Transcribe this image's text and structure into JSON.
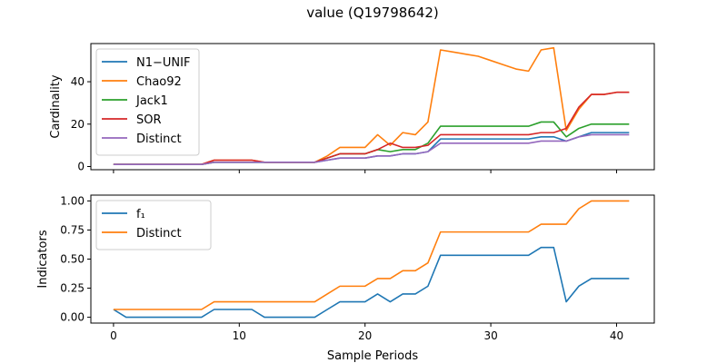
{
  "chart_data": {
    "title": "value (Q19798642)",
    "xlabel": "Sample Periods",
    "x": [
      0,
      1,
      2,
      3,
      4,
      5,
      6,
      7,
      8,
      9,
      10,
      11,
      12,
      13,
      14,
      15,
      16,
      17,
      18,
      19,
      20,
      21,
      22,
      23,
      24,
      25,
      26,
      27,
      28,
      29,
      30,
      31,
      32,
      33,
      34,
      35,
      36,
      37,
      38,
      39,
      40,
      41
    ],
    "x_ticks": [
      0,
      10,
      20,
      30,
      40
    ],
    "xlim": [
      -1.8,
      43
    ],
    "colors": {
      "blue": "#1f77b4",
      "orange": "#ff7f0e",
      "green": "#2ca02c",
      "red": "#d62728",
      "purple": "#9467bd"
    },
    "subplots": [
      {
        "type": "line",
        "ylabel": "Cardinality",
        "ylim": [
          -1.5,
          58
        ],
        "y_ticks": [
          0,
          20,
          40
        ],
        "legend_position": "upper-left",
        "series": [
          {
            "name": "N1−UNIF",
            "color": "#1f77b4",
            "values": [
              1,
              1,
              1,
              1,
              1,
              1,
              1,
              1,
              2,
              2,
              2,
              2,
              2,
              2,
              2,
              2,
              2,
              3,
              4,
              4,
              4,
              5,
              5,
              6,
              6,
              7,
              13,
              13,
              13,
              13,
              13,
              13,
              13,
              13,
              14,
              14,
              12,
              14,
              16,
              16,
              16,
              16
            ]
          },
          {
            "name": "Chao92",
            "color": "#ff7f0e",
            "values": [
              1,
              1,
              1,
              1,
              1,
              1,
              1,
              1,
              3,
              3,
              3,
              3,
              2,
              2,
              2,
              2,
              2,
              5,
              9,
              9,
              9,
              15,
              10,
              16,
              15,
              21,
              55,
              54,
              53,
              52,
              50,
              48,
              46,
              45,
              55,
              56,
              17,
              27,
              34,
              34,
              35,
              35
            ]
          },
          {
            "name": "Jack1",
            "color": "#2ca02c",
            "values": [
              1,
              1,
              1,
              1,
              1,
              1,
              1,
              1,
              2,
              2,
              2,
              2,
              2,
              2,
              2,
              2,
              2,
              4,
              6,
              6,
              6,
              8,
              7,
              8,
              8,
              11,
              19,
              19,
              19,
              19,
              19,
              19,
              19,
              19,
              21,
              21,
              14,
              18,
              20,
              20,
              20,
              20
            ]
          },
          {
            "name": "SOR",
            "color": "#d62728",
            "values": [
              1,
              1,
              1,
              1,
              1,
              1,
              1,
              1,
              3,
              3,
              3,
              3,
              2,
              2,
              2,
              2,
              2,
              4,
              6,
              6,
              6,
              8,
              11,
              9,
              9,
              10,
              15,
              15,
              15,
              15,
              15,
              15,
              15,
              15,
              16,
              16,
              18,
              28,
              34,
              34,
              35,
              35
            ]
          },
          {
            "name": "Distinct",
            "color": "#9467bd",
            "values": [
              1,
              1,
              1,
              1,
              1,
              1,
              1,
              1,
              2,
              2,
              2,
              2,
              2,
              2,
              2,
              2,
              2,
              3,
              4,
              4,
              4,
              5,
              5,
              6,
              6,
              7,
              11,
              11,
              11,
              11,
              11,
              11,
              11,
              11,
              12,
              12,
              12,
              14,
              15,
              15,
              15,
              15
            ]
          }
        ]
      },
      {
        "type": "line",
        "ylabel": "Indicators",
        "ylim": [
          -0.05,
          1.05
        ],
        "y_ticks": [
          "0.00",
          "0.25",
          "0.50",
          "0.75",
          "1.00"
        ],
        "legend_position": "upper-left",
        "series": [
          {
            "name": "f₁",
            "color": "#1f77b4",
            "values": [
              0.067,
              0,
              0,
              0,
              0,
              0,
              0,
              0,
              0.067,
              0.067,
              0.067,
              0.067,
              0,
              0,
              0,
              0,
              0,
              0.067,
              0.133,
              0.133,
              0.133,
              0.2,
              0.133,
              0.2,
              0.2,
              0.267,
              0.533,
              0.533,
              0.533,
              0.533,
              0.533,
              0.533,
              0.533,
              0.533,
              0.6,
              0.6,
              0.133,
              0.267,
              0.333,
              0.333,
              0.333,
              0.333
            ]
          },
          {
            "name": "Distinct",
            "color": "#ff7f0e",
            "values": [
              0.067,
              0.067,
              0.067,
              0.067,
              0.067,
              0.067,
              0.067,
              0.067,
              0.133,
              0.133,
              0.133,
              0.133,
              0.133,
              0.133,
              0.133,
              0.133,
              0.133,
              0.2,
              0.267,
              0.267,
              0.267,
              0.333,
              0.333,
              0.4,
              0.4,
              0.467,
              0.733,
              0.733,
              0.733,
              0.733,
              0.733,
              0.733,
              0.733,
              0.733,
              0.8,
              0.8,
              0.8,
              0.933,
              1,
              1,
              1,
              1
            ]
          }
        ]
      }
    ]
  }
}
